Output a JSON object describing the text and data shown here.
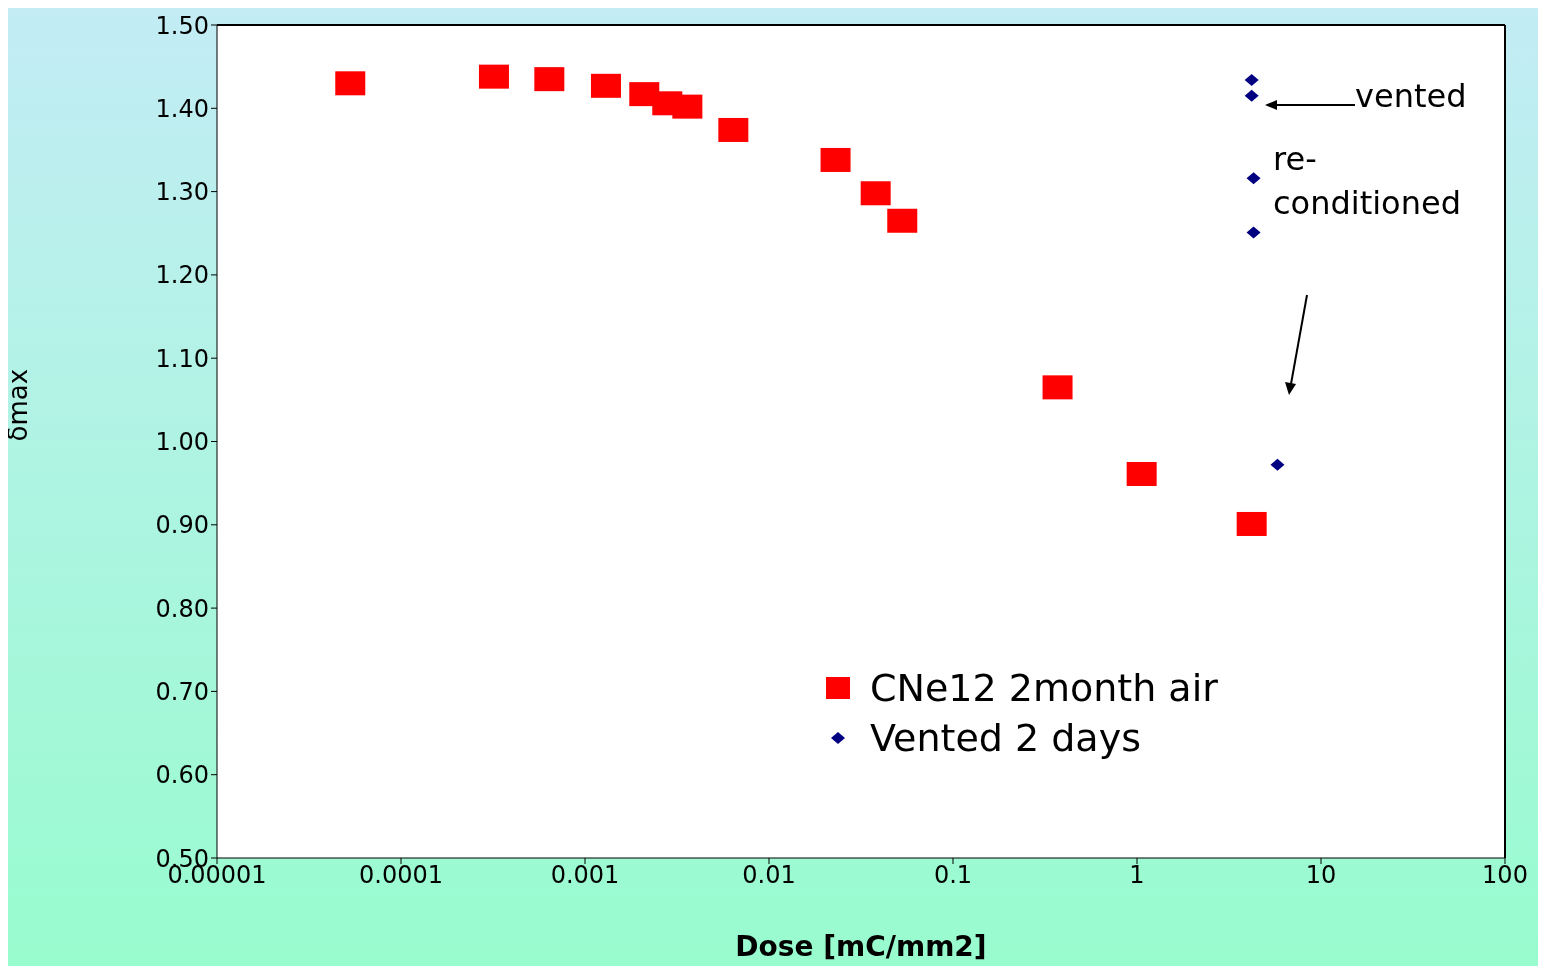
{
  "chart_data": {
    "type": "scatter",
    "xlabel": "Dose [mC/mm2]",
    "ylabel": "δmax",
    "log": "x",
    "grid": false,
    "legend": "bottom",
    "xlim": [
      1e-05,
      100
    ],
    "xticks": [
      {
        "value": 1e-05,
        "label": "0.00001"
      },
      0.0001,
      0.001,
      0.01,
      0.1,
      1,
      10,
      100
    ],
    "ylim": [
      0.5,
      1.5
    ],
    "yticks": [
      {
        "value": 0.5,
        "label": "0.50"
      },
      {
        "value": 0.6,
        "label": "0.60"
      },
      {
        "value": 0.7,
        "label": "0.70"
      },
      {
        "value": 0.8,
        "label": "0.80"
      },
      {
        "value": 0.9,
        "label": "0.90"
      },
      {
        "value": 1.0,
        "label": "1.00"
      },
      {
        "value": 1.1,
        "label": "1.10"
      },
      {
        "value": 1.2,
        "label": "1.20"
      },
      {
        "value": 1.3,
        "label": "1.30"
      },
      {
        "value": 1.4,
        "label": "1.40"
      },
      {
        "value": 1.5,
        "label": "1.50"
      }
    ],
    "series": [
      {
        "name": "CNe12 2month air",
        "color": "#ff0000",
        "marker": "square",
        "x": [
          5.3e-05,
          0.00032,
          0.00064,
          0.0013,
          0.0021,
          0.0028,
          0.0036,
          0.0064,
          0.023,
          0.038,
          0.053,
          0.37,
          1.06,
          4.2
        ],
        "values": [
          1.43,
          1.438,
          1.435,
          1.427,
          1.417,
          1.406,
          1.402,
          1.374,
          1.338,
          1.298,
          1.265,
          1.065,
          0.961,
          0.901
        ]
      },
      {
        "name": "Vented 2 days",
        "color": "#000080",
        "marker": "diamond",
        "x": [
          4.2,
          4.2,
          4.3,
          4.3,
          5.8
        ],
        "values": [
          1.434,
          1.415,
          1.316,
          1.251,
          0.972
        ]
      }
    ],
    "annotations": [
      "vented",
      "re-conditioned"
    ]
  }
}
